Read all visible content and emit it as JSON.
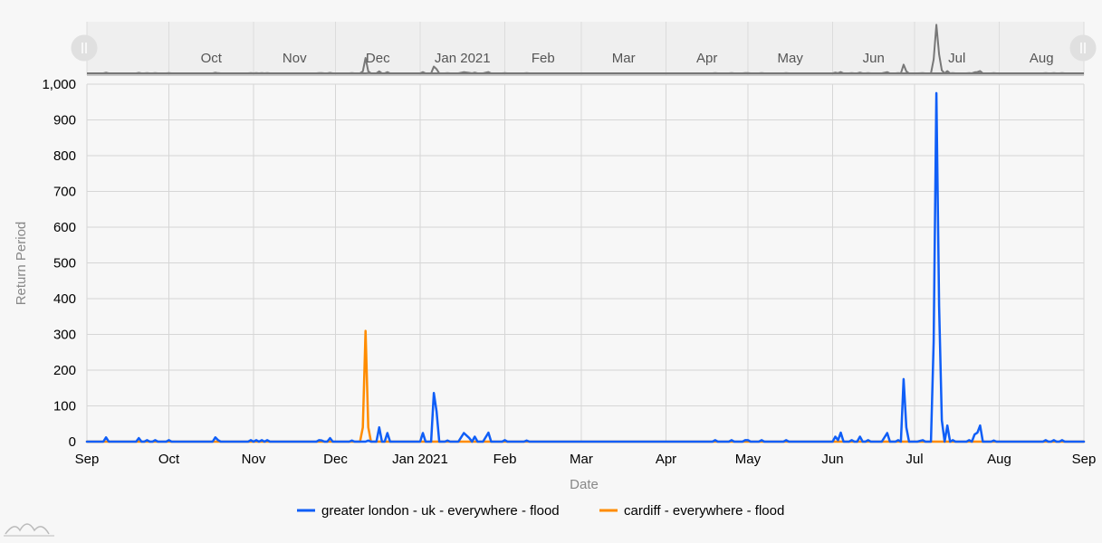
{
  "chart_data": {
    "type": "line",
    "xlabel": "Date",
    "ylabel": "Return Period",
    "xlim": [
      "2020-09-01",
      "2021-09-01"
    ],
    "ylim": [
      0,
      1000
    ],
    "y_ticks": [
      "0",
      "100",
      "200",
      "300",
      "400",
      "500",
      "600",
      "700",
      "800",
      "900",
      "1,000"
    ],
    "x_ticks": [
      {
        "date": "2020-09-01",
        "label": "Sep"
      },
      {
        "date": "2020-10-01",
        "label": "Oct"
      },
      {
        "date": "2020-11-01",
        "label": "Nov"
      },
      {
        "date": "2020-12-01",
        "label": "Dec"
      },
      {
        "date": "2021-01-01",
        "label": "Jan 2021"
      },
      {
        "date": "2021-02-01",
        "label": "Feb"
      },
      {
        "date": "2021-03-01",
        "label": "Mar"
      },
      {
        "date": "2021-04-01",
        "label": "Apr"
      },
      {
        "date": "2021-05-01",
        "label": "May"
      },
      {
        "date": "2021-06-01",
        "label": "Jun"
      },
      {
        "date": "2021-07-01",
        "label": "Jul"
      },
      {
        "date": "2021-08-01",
        "label": "Aug"
      },
      {
        "date": "2021-09-01",
        "label": "Sep"
      }
    ],
    "scrollbar_labels": [
      {
        "date": "2020-10-01",
        "label": "Oct"
      },
      {
        "date": "2020-11-01",
        "label": "Nov"
      },
      {
        "date": "2020-12-01",
        "label": "Dec"
      },
      {
        "date": "2021-01-01",
        "label": "Jan 2021"
      },
      {
        "date": "2021-02-01",
        "label": "Feb"
      },
      {
        "date": "2021-03-01",
        "label": "Mar"
      },
      {
        "date": "2021-04-01",
        "label": "Apr"
      },
      {
        "date": "2021-05-01",
        "label": "May"
      },
      {
        "date": "2021-06-01",
        "label": "Jun"
      },
      {
        "date": "2021-07-01",
        "label": "Jul"
      },
      {
        "date": "2021-08-01",
        "label": "Aug"
      }
    ],
    "grid": true,
    "legend_position": "bottom",
    "series": [
      {
        "name": "greater london - uk - everywhere - flood",
        "color": "#0f5ef7",
        "points": [
          [
            "2020-09-01",
            0
          ],
          [
            "2020-09-07",
            0
          ],
          [
            "2020-09-08",
            12
          ],
          [
            "2020-09-09",
            0
          ],
          [
            "2020-09-19",
            0
          ],
          [
            "2020-09-20",
            10
          ],
          [
            "2020-09-21",
            0
          ],
          [
            "2020-09-22",
            0
          ],
          [
            "2020-09-23",
            4
          ],
          [
            "2020-09-24",
            0
          ],
          [
            "2020-09-25",
            0
          ],
          [
            "2020-09-26",
            4
          ],
          [
            "2020-09-27",
            0
          ],
          [
            "2020-09-30",
            0
          ],
          [
            "2020-10-01",
            4
          ],
          [
            "2020-10-02",
            0
          ],
          [
            "2020-10-17",
            0
          ],
          [
            "2020-10-18",
            12
          ],
          [
            "2020-10-19",
            4
          ],
          [
            "2020-10-20",
            0
          ],
          [
            "2020-10-30",
            0
          ],
          [
            "2020-10-31",
            4
          ],
          [
            "2020-11-01",
            0
          ],
          [
            "2020-11-02",
            4
          ],
          [
            "2020-11-03",
            0
          ],
          [
            "2020-11-04",
            4
          ],
          [
            "2020-11-05",
            0
          ],
          [
            "2020-11-06",
            4
          ],
          [
            "2020-11-07",
            0
          ],
          [
            "2020-11-24",
            0
          ],
          [
            "2020-11-25",
            4
          ],
          [
            "2020-11-26",
            3
          ],
          [
            "2020-11-27",
            0
          ],
          [
            "2020-11-28",
            0
          ],
          [
            "2020-11-29",
            10
          ],
          [
            "2020-11-30",
            0
          ],
          [
            "2020-12-06",
            0
          ],
          [
            "2020-12-07",
            3
          ],
          [
            "2020-12-08",
            0
          ],
          [
            "2020-12-12",
            0
          ],
          [
            "2020-12-13",
            3
          ],
          [
            "2020-12-14",
            0
          ],
          [
            "2020-12-16",
            0
          ],
          [
            "2020-12-17",
            40
          ],
          [
            "2020-12-18",
            0
          ],
          [
            "2020-12-19",
            0
          ],
          [
            "2020-12-20",
            24
          ],
          [
            "2020-12-21",
            0
          ],
          [
            "2021-01-01",
            0
          ],
          [
            "2021-01-02",
            24
          ],
          [
            "2021-01-03",
            0
          ],
          [
            "2021-01-05",
            0
          ],
          [
            "2021-01-06",
            136
          ],
          [
            "2021-01-07",
            85
          ],
          [
            "2021-01-08",
            0
          ],
          [
            "2021-01-10",
            0
          ],
          [
            "2021-01-11",
            3
          ],
          [
            "2021-01-12",
            0
          ],
          [
            "2021-01-15",
            0
          ],
          [
            "2021-01-17",
            24
          ],
          [
            "2021-01-19",
            10
          ],
          [
            "2021-01-20",
            0
          ],
          [
            "2021-01-21",
            14
          ],
          [
            "2021-01-22",
            0
          ],
          [
            "2021-01-24",
            0
          ],
          [
            "2021-01-26",
            25
          ],
          [
            "2021-01-27",
            0
          ],
          [
            "2021-01-31",
            0
          ],
          [
            "2021-02-01",
            4
          ],
          [
            "2021-02-02",
            0
          ],
          [
            "2021-02-08",
            0
          ],
          [
            "2021-02-09",
            3
          ],
          [
            "2021-02-10",
            0
          ],
          [
            "2021-04-18",
            0
          ],
          [
            "2021-04-19",
            4
          ],
          [
            "2021-04-20",
            0
          ],
          [
            "2021-04-24",
            0
          ],
          [
            "2021-04-25",
            4
          ],
          [
            "2021-04-26",
            0
          ],
          [
            "2021-04-29",
            0
          ],
          [
            "2021-04-30",
            4
          ],
          [
            "2021-05-01",
            4
          ],
          [
            "2021-05-02",
            0
          ],
          [
            "2021-05-05",
            0
          ],
          [
            "2021-05-06",
            4
          ],
          [
            "2021-05-07",
            0
          ],
          [
            "2021-05-14",
            0
          ],
          [
            "2021-05-15",
            4
          ],
          [
            "2021-05-16",
            0
          ],
          [
            "2021-06-01",
            0
          ],
          [
            "2021-06-02",
            14
          ],
          [
            "2021-06-03",
            4
          ],
          [
            "2021-06-04",
            25
          ],
          [
            "2021-06-05",
            0
          ],
          [
            "2021-06-07",
            0
          ],
          [
            "2021-06-08",
            4
          ],
          [
            "2021-06-09",
            0
          ],
          [
            "2021-06-10",
            0
          ],
          [
            "2021-06-11",
            14
          ],
          [
            "2021-06-12",
            0
          ],
          [
            "2021-06-13",
            0
          ],
          [
            "2021-06-14",
            4
          ],
          [
            "2021-06-15",
            0
          ],
          [
            "2021-06-19",
            0
          ],
          [
            "2021-06-21",
            24
          ],
          [
            "2021-06-22",
            0
          ],
          [
            "2021-06-24",
            0
          ],
          [
            "2021-06-25",
            4
          ],
          [
            "2021-06-26",
            0
          ],
          [
            "2021-06-26",
            0
          ],
          [
            "2021-06-27",
            175
          ],
          [
            "2021-06-28",
            40
          ],
          [
            "2021-06-29",
            0
          ],
          [
            "2021-07-02",
            0
          ],
          [
            "2021-07-04",
            4
          ],
          [
            "2021-07-05",
            0
          ],
          [
            "2021-07-07",
            0
          ],
          [
            "2021-07-08",
            280
          ],
          [
            "2021-07-09",
            975
          ],
          [
            "2021-07-10",
            380
          ],
          [
            "2021-07-11",
            60
          ],
          [
            "2021-07-12",
            0
          ],
          [
            "2021-07-13",
            45
          ],
          [
            "2021-07-14",
            0
          ],
          [
            "2021-07-15",
            4
          ],
          [
            "2021-07-16",
            0
          ],
          [
            "2021-07-20",
            0
          ],
          [
            "2021-07-21",
            4
          ],
          [
            "2021-07-22",
            0
          ],
          [
            "2021-07-23",
            20
          ],
          [
            "2021-07-24",
            25
          ],
          [
            "2021-07-25",
            45
          ],
          [
            "2021-07-26",
            0
          ],
          [
            "2021-07-29",
            0
          ],
          [
            "2021-07-30",
            3
          ],
          [
            "2021-07-31",
            0
          ],
          [
            "2021-08-17",
            0
          ],
          [
            "2021-08-18",
            4
          ],
          [
            "2021-08-19",
            0
          ],
          [
            "2021-08-20",
            0
          ],
          [
            "2021-08-21",
            4
          ],
          [
            "2021-08-22",
            0
          ],
          [
            "2021-08-23",
            0
          ],
          [
            "2021-08-24",
            4
          ],
          [
            "2021-08-25",
            0
          ],
          [
            "2021-09-01",
            0
          ]
        ]
      },
      {
        "name": "cardiff - everywhere - flood",
        "color": "#ff8c00",
        "points": [
          [
            "2020-09-01",
            0
          ],
          [
            "2020-12-10",
            0
          ],
          [
            "2020-12-11",
            40
          ],
          [
            "2020-12-12",
            310
          ],
          [
            "2020-12-13",
            40
          ],
          [
            "2020-12-14",
            0
          ],
          [
            "2021-09-01",
            0
          ]
        ]
      }
    ]
  }
}
